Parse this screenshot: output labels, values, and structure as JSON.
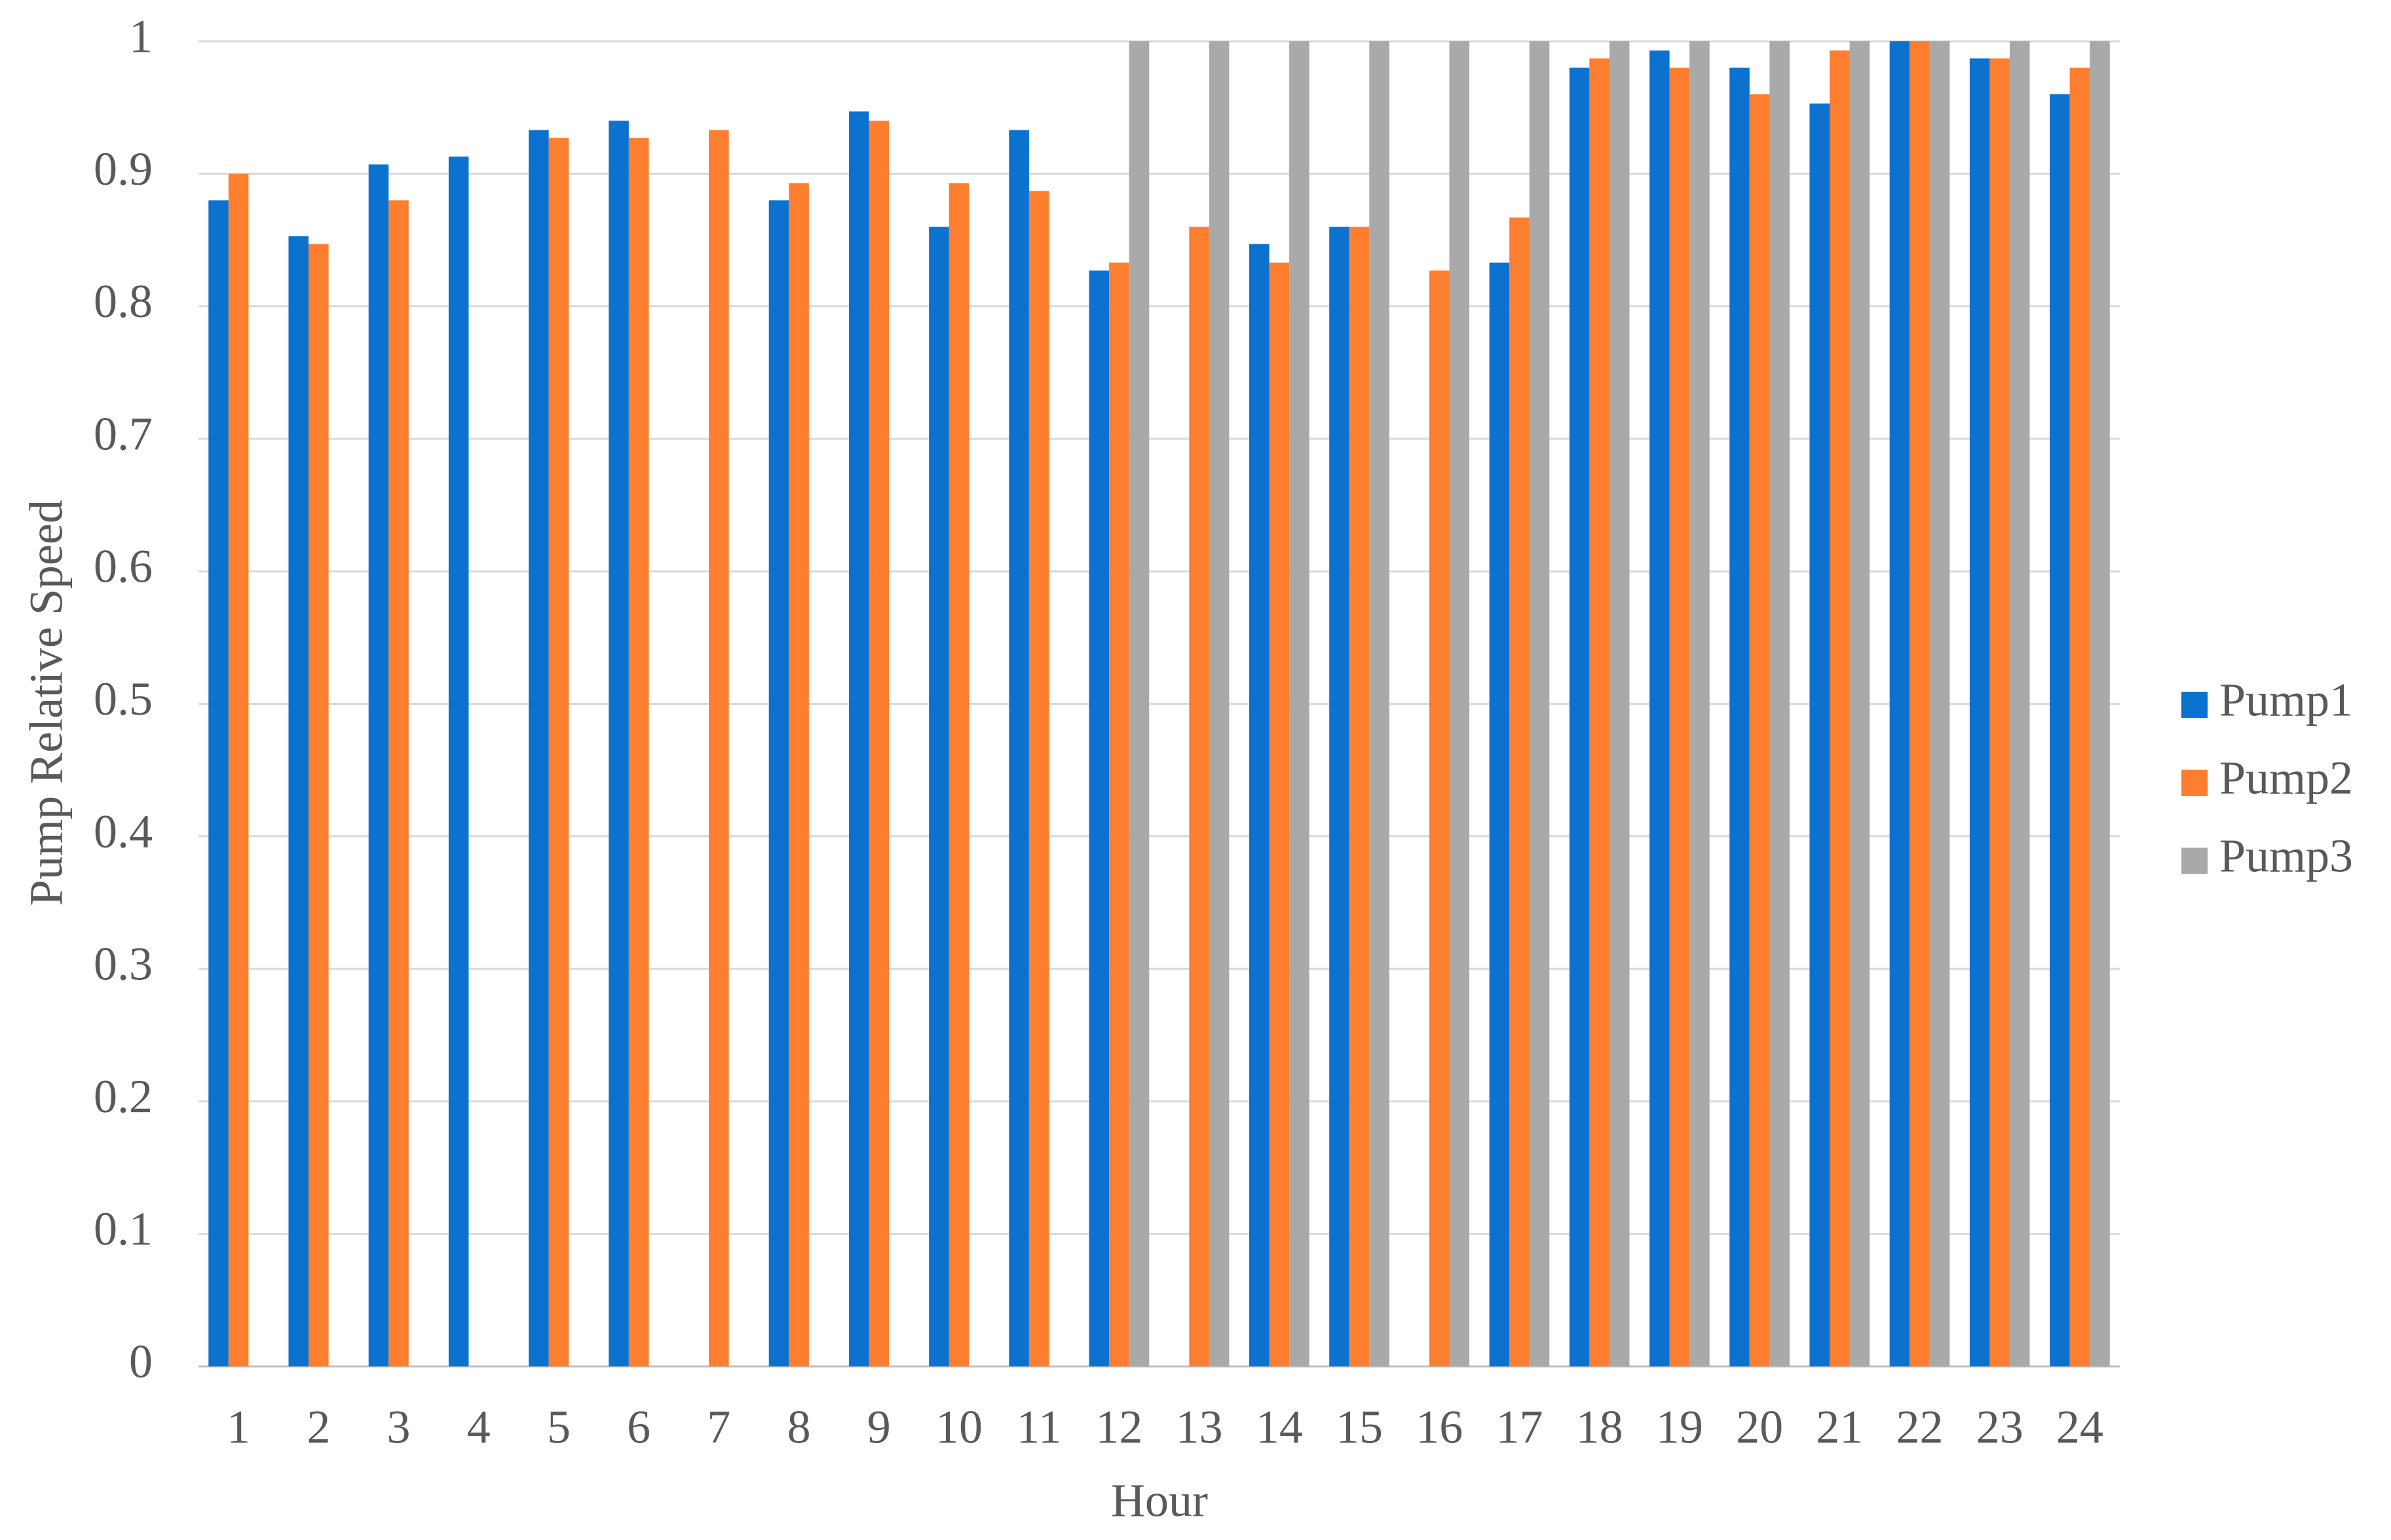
{
  "chart_data": {
    "type": "bar",
    "x_label": "Hour",
    "y_label": "Pump Relative Speed",
    "categories": [
      "1",
      "2",
      "3",
      "4",
      "5",
      "6",
      "7",
      "8",
      "9",
      "10",
      "11",
      "12",
      "13",
      "14",
      "15",
      "16",
      "17",
      "18",
      "19",
      "20",
      "21",
      "22",
      "23",
      "24"
    ],
    "series": [
      {
        "name": "Pump1",
        "color": "#0b72d0",
        "values": [
          0.88,
          0.853,
          0.907,
          0.913,
          0.933,
          0.94,
          null,
          0.88,
          0.947,
          0.86,
          0.933,
          0.827,
          null,
          0.847,
          0.86,
          null,
          0.833,
          0.98,
          0.993,
          0.98,
          0.953,
          1,
          0.987,
          0.96
        ]
      },
      {
        "name": "Pump2",
        "color": "#fd7e2f",
        "values": [
          0.9,
          0.847,
          0.88,
          null,
          0.927,
          0.927,
          0.933,
          0.893,
          0.94,
          0.893,
          0.887,
          0.833,
          0.86,
          0.833,
          0.86,
          0.827,
          0.867,
          0.987,
          0.98,
          0.96,
          0.993,
          1,
          0.987,
          0.98
        ]
      },
      {
        "name": "Pump3",
        "color": "#a9a9a9",
        "values": [
          null,
          null,
          null,
          null,
          null,
          null,
          null,
          null,
          null,
          null,
          null,
          1,
          1,
          1,
          1,
          1,
          1,
          1,
          1,
          1,
          1,
          1,
          1,
          1
        ]
      }
    ],
    "ylim": [
      0,
      1
    ],
    "yticks": [
      0,
      0.1,
      0.2,
      0.3,
      0.4,
      0.5,
      0.6,
      0.7,
      0.8,
      0.9,
      1
    ],
    "grid": true,
    "legend": "right"
  }
}
